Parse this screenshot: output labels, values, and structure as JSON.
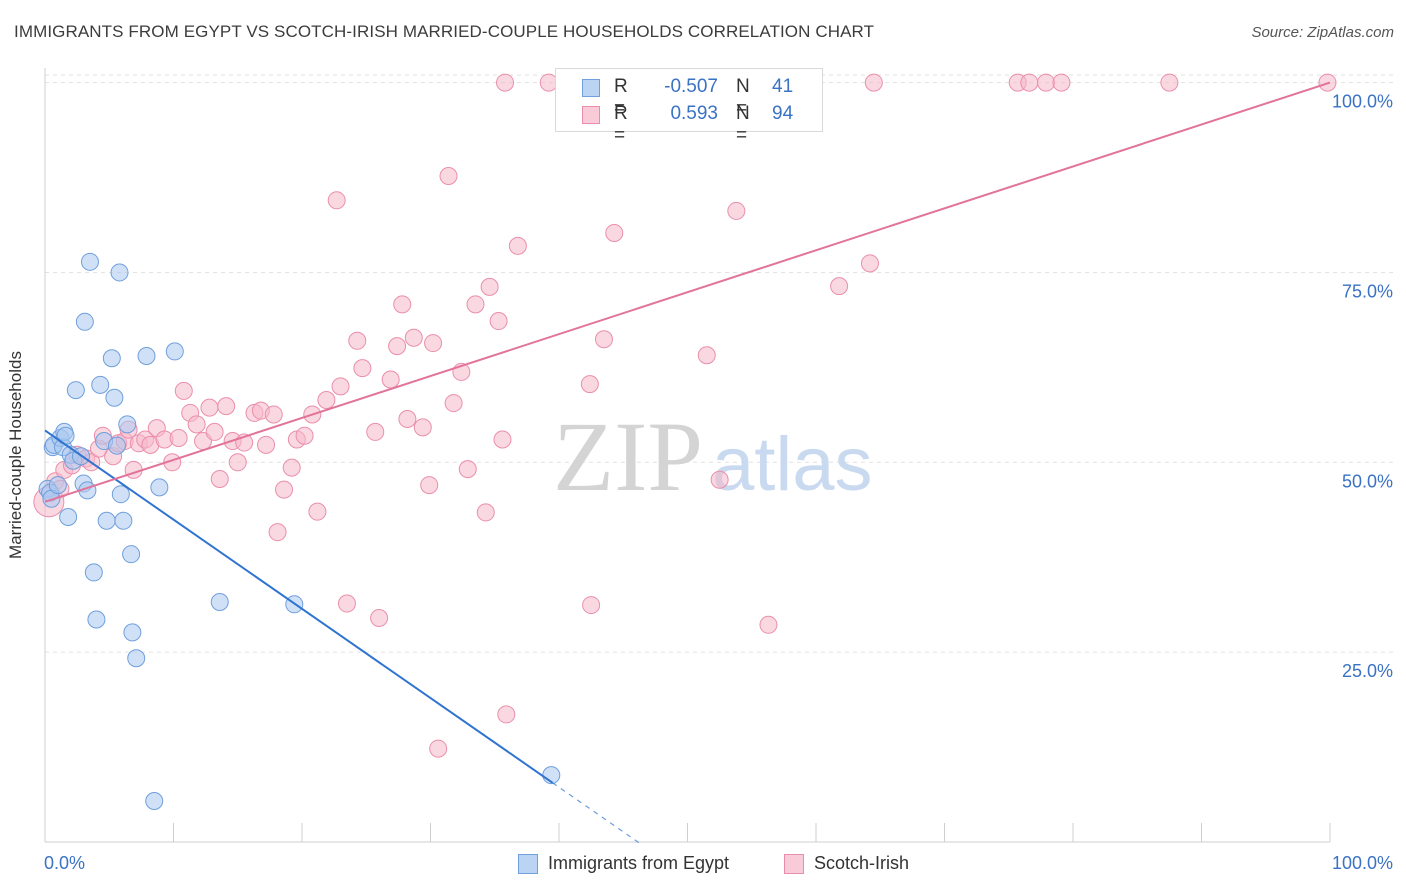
{
  "title": "IMMIGRANTS FROM EGYPT VS SCOTCH-IRISH MARRIED-COUPLE HOUSEHOLDS CORRELATION CHART",
  "source": "Source: ZipAtlas.com",
  "watermark": {
    "zip": "ZIP",
    "atlas": "atlas"
  },
  "colors": {
    "egypt_fill": "#a9c8f0",
    "egypt_stroke": "#6f9fdc",
    "egypt_line": "#2f74d0",
    "scotch_fill": "#f6b8cb",
    "scotch_stroke": "#ea8fab",
    "scotch_line": "#e2739a",
    "tick_label": "#3a72c4",
    "grid": "#e2e2e2"
  },
  "legend": {
    "rows": [
      {
        "r_label": "R =",
        "r_value": "-0.507",
        "n_label": "N =",
        "n_value": "41"
      },
      {
        "r_label": "R =",
        "r_value": "0.593",
        "n_label": "N =",
        "n_value": "94"
      }
    ]
  },
  "bottom_legend": [
    "Immigrants from Egypt",
    "Scotch-Irish"
  ],
  "chart_data": {
    "type": "scatter",
    "title": "IMMIGRANTS FROM EGYPT VS SCOTCH-IRISH MARRIED-COUPLE HOUSEHOLDS CORRELATION CHART",
    "xlabel": "",
    "ylabel": "Married-couple Households",
    "xlim": [
      0,
      100
    ],
    "ylim": [
      0,
      101
    ],
    "x_tick_labels": [
      "0.0%",
      "100.0%"
    ],
    "y_ticks": [
      25,
      50,
      75,
      100
    ],
    "y_tick_labels": [
      "25.0%",
      "50.0%",
      "75.0%",
      "100.0%"
    ],
    "grid": true,
    "legend_position": "top-center",
    "series": [
      {
        "name": "Immigrants from Egypt",
        "r": -0.507,
        "n": 41,
        "trend": {
          "x0": 0,
          "y0": 54.2,
          "x1": 39.5,
          "y1": 7.8,
          "dash_to_x": 46.5
        },
        "points": [
          [
            0.2,
            46.5
          ],
          [
            0.4,
            46
          ],
          [
            0.5,
            45.2
          ],
          [
            0.6,
            52
          ],
          [
            0.7,
            52.3
          ],
          [
            1.0,
            47
          ],
          [
            1.2,
            53.2
          ],
          [
            1.4,
            52
          ],
          [
            1.5,
            54
          ],
          [
            1.6,
            53.5
          ],
          [
            1.8,
            42.8
          ],
          [
            2.0,
            51
          ],
          [
            2.2,
            50.2
          ],
          [
            2.4,
            59.5
          ],
          [
            2.8,
            50.8
          ],
          [
            3.0,
            47.2
          ],
          [
            3.1,
            68.5
          ],
          [
            3.3,
            46.3
          ],
          [
            3.5,
            76.4
          ],
          [
            3.8,
            35.5
          ],
          [
            4.0,
            29.3
          ],
          [
            4.3,
            60.2
          ],
          [
            4.6,
            52.8
          ],
          [
            4.8,
            42.3
          ],
          [
            5.2,
            63.7
          ],
          [
            5.4,
            58.5
          ],
          [
            5.6,
            52.2
          ],
          [
            5.8,
            75
          ],
          [
            5.9,
            45.8
          ],
          [
            6.1,
            42.3
          ],
          [
            6.4,
            55
          ],
          [
            6.7,
            37.9
          ],
          [
            6.8,
            27.6
          ],
          [
            7.1,
            24.2
          ],
          [
            7.9,
            64
          ],
          [
            8.5,
            5.4
          ],
          [
            8.9,
            46.7
          ],
          [
            10.1,
            64.6
          ],
          [
            13.6,
            31.6
          ],
          [
            19.4,
            31.3
          ],
          [
            39.4,
            8.8
          ]
        ]
      },
      {
        "name": "Scotch-Irish",
        "r": 0.593,
        "n": 94,
        "trend": {
          "x0": 0,
          "y0": 44.8,
          "x1": 100,
          "y1": 100
        },
        "points": [
          [
            0.3,
            44.8
          ],
          [
            0.8,
            47.5
          ],
          [
            1.2,
            46.5
          ],
          [
            1.5,
            49
          ],
          [
            2.1,
            49.6
          ],
          [
            2.5,
            51
          ],
          [
            3.2,
            50.5
          ],
          [
            3.6,
            50
          ],
          [
            4.2,
            51.8
          ],
          [
            4.5,
            53.5
          ],
          [
            5.3,
            50.8
          ],
          [
            5.7,
            52.5
          ],
          [
            6.2,
            52.8
          ],
          [
            6.5,
            54.3
          ],
          [
            6.9,
            49
          ],
          [
            7.3,
            52.5
          ],
          [
            7.8,
            53
          ],
          [
            8.2,
            52.3
          ],
          [
            8.7,
            54.5
          ],
          [
            9.3,
            53
          ],
          [
            9.9,
            50
          ],
          [
            10.4,
            53.2
          ],
          [
            10.8,
            59.4
          ],
          [
            11.3,
            56.5
          ],
          [
            11.8,
            55
          ],
          [
            12.3,
            52.8
          ],
          [
            12.8,
            57.2
          ],
          [
            13.2,
            54
          ],
          [
            13.6,
            47.8
          ],
          [
            14.1,
            57.4
          ],
          [
            14.6,
            52.8
          ],
          [
            15.0,
            50
          ],
          [
            15.5,
            52.6
          ],
          [
            16.3,
            56.5
          ],
          [
            16.8,
            56.8
          ],
          [
            17.2,
            52.3
          ],
          [
            17.8,
            56.3
          ],
          [
            18.1,
            40.8
          ],
          [
            18.6,
            46.4
          ],
          [
            19.2,
            49.3
          ],
          [
            19.6,
            53
          ],
          [
            20.2,
            53.5
          ],
          [
            20.8,
            56.3
          ],
          [
            21.2,
            43.5
          ],
          [
            21.9,
            58.2
          ],
          [
            22.7,
            84.5
          ],
          [
            23.0,
            60
          ],
          [
            23.5,
            31.4
          ],
          [
            24.3,
            66
          ],
          [
            24.7,
            62.4
          ],
          [
            25.7,
            54
          ],
          [
            26.0,
            29.5
          ],
          [
            26.9,
            60.9
          ],
          [
            27.4,
            65.3
          ],
          [
            27.8,
            70.8
          ],
          [
            28.2,
            55.7
          ],
          [
            28.7,
            66.4
          ],
          [
            29.4,
            54.6
          ],
          [
            29.9,
            47
          ],
          [
            30.2,
            65.7
          ],
          [
            30.6,
            12.3
          ],
          [
            31.4,
            87.7
          ],
          [
            31.8,
            57.8
          ],
          [
            32.4,
            61.9
          ],
          [
            32.9,
            49.1
          ],
          [
            33.5,
            70.8
          ],
          [
            34.3,
            43.4
          ],
          [
            34.6,
            73.1
          ],
          [
            35.3,
            68.6
          ],
          [
            35.6,
            53
          ],
          [
            35.9,
            16.8
          ],
          [
            36.8,
            78.5
          ],
          [
            39.2,
            100
          ],
          [
            42.4,
            60.3
          ],
          [
            43.5,
            66.2
          ],
          [
            44.3,
            80.2
          ],
          [
            51.5,
            64.1
          ],
          [
            53.0,
            100
          ],
          [
            52.5,
            47.7
          ],
          [
            53.8,
            83.1
          ],
          [
            56.3,
            28.6
          ],
          [
            55.2,
            100
          ],
          [
            61.8,
            73.2
          ],
          [
            64.2,
            76.2
          ],
          [
            64.5,
            100
          ],
          [
            75.7,
            100
          ],
          [
            76.6,
            100
          ],
          [
            77.9,
            100
          ],
          [
            79.1,
            100
          ],
          [
            87.5,
            100
          ],
          [
            99.8,
            100
          ],
          [
            42.5,
            31.2
          ],
          [
            35.8,
            100
          ],
          [
            56.8,
            100
          ]
        ]
      }
    ]
  }
}
